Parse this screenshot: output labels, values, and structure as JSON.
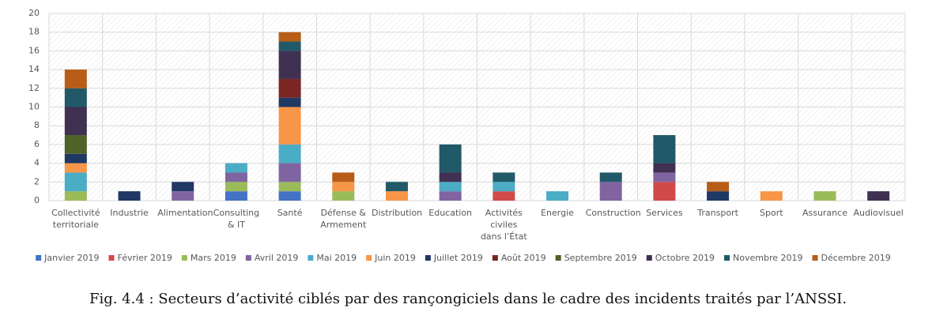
{
  "chart_data": {
    "type": "bar",
    "stacked": true,
    "caption": "Fig. 4.4 : Secteurs d’activité ciblés par des rançongiciels dans le cadre des incidents traités par l’ANSSI.",
    "categories": [
      "Collectivité territoriale",
      "Industrie",
      "Alimentation",
      "Consulting & IT",
      "Santé",
      "Défense & Armement",
      "Distribution",
      "Education",
      "Activités civiles dans l’État",
      "Energie",
      "Construction",
      "Services",
      "Transport",
      "Sport",
      "Assurance",
      "Audiovisuel"
    ],
    "series": [
      {
        "name": "Janvier 2019",
        "color": "#4472c4",
        "values": [
          0,
          0,
          0,
          1,
          1,
          0,
          0,
          0,
          0,
          0,
          0,
          0,
          0,
          0,
          0,
          0
        ]
      },
      {
        "name": "Février 2019",
        "color": "#d04a4a",
        "values": [
          0,
          0,
          0,
          0,
          0,
          0,
          0,
          0,
          1,
          0,
          0,
          2,
          0,
          0,
          0,
          0
        ]
      },
      {
        "name": "Mars 2019",
        "color": "#9bbb59",
        "values": [
          1,
          0,
          0,
          1,
          1,
          1,
          0,
          0,
          0,
          0,
          0,
          0,
          0,
          0,
          1,
          0
        ]
      },
      {
        "name": "Avril 2019",
        "color": "#8064a2",
        "values": [
          0,
          0,
          1,
          1,
          2,
          0,
          0,
          1,
          0,
          0,
          2,
          1,
          0,
          0,
          0,
          0
        ]
      },
      {
        "name": "Mai 2019",
        "color": "#4bacc6",
        "values": [
          2,
          0,
          0,
          1,
          2,
          0,
          0,
          1,
          1,
          1,
          0,
          0,
          0,
          0,
          0,
          0
        ]
      },
      {
        "name": "Juin 2019",
        "color": "#f79646",
        "values": [
          1,
          0,
          0,
          0,
          4,
          1,
          1,
          0,
          0,
          0,
          0,
          0,
          0,
          1,
          0,
          0
        ]
      },
      {
        "name": "Juillet 2019",
        "color": "#1f3864",
        "values": [
          1,
          1,
          1,
          0,
          1,
          0,
          0,
          0,
          0,
          0,
          0,
          0,
          1,
          0,
          0,
          0
        ]
      },
      {
        "name": "Août 2019",
        "color": "#7b2525",
        "values": [
          0,
          0,
          0,
          0,
          2,
          0,
          0,
          0,
          0,
          0,
          0,
          0,
          0,
          0,
          0,
          0
        ]
      },
      {
        "name": "Septembre 2019",
        "color": "#4f6228",
        "values": [
          2,
          0,
          0,
          0,
          0,
          0,
          0,
          0,
          0,
          0,
          0,
          0,
          0,
          0,
          0,
          0
        ]
      },
      {
        "name": "Octobre 2019",
        "color": "#403152",
        "values": [
          3,
          0,
          0,
          0,
          3,
          0,
          0,
          1,
          0,
          0,
          0,
          1,
          0,
          0,
          0,
          1
        ]
      },
      {
        "name": "Novembre 2019",
        "color": "#215968",
        "values": [
          2,
          0,
          0,
          0,
          1,
          0,
          1,
          3,
          1,
          0,
          1,
          3,
          0,
          0,
          0,
          0
        ]
      },
      {
        "name": "Décembre 2019",
        "color": "#b75d17",
        "values": [
          2,
          0,
          0,
          0,
          1,
          1,
          0,
          0,
          0,
          0,
          0,
          0,
          1,
          0,
          0,
          0
        ]
      }
    ],
    "ylim": [
      0,
      20
    ],
    "yticks": [
      0,
      2,
      4,
      6,
      8,
      10,
      12,
      14,
      16,
      18,
      20
    ],
    "grid": true,
    "legend": "bottom"
  }
}
